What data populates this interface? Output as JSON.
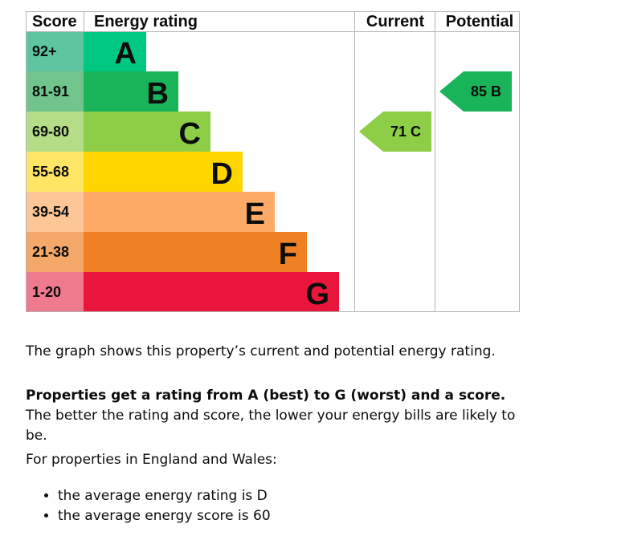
{
  "chart_data": {
    "type": "table",
    "headers": {
      "score": "Score",
      "rating": "Energy rating",
      "current": "Current",
      "potential": "Potential"
    },
    "bands": [
      {
        "letter": "A",
        "range": "92+",
        "color": "#00c781",
        "score_color": "#5ec5a0"
      },
      {
        "letter": "B",
        "range": "81-91",
        "color": "#19b459",
        "score_color": "#71c48c"
      },
      {
        "letter": "C",
        "range": "69-80",
        "color": "#8dce46",
        "score_color": "#b5dc86"
      },
      {
        "letter": "D",
        "range": "55-68",
        "color": "#ffd500",
        "score_color": "#ffe566"
      },
      {
        "letter": "E",
        "range": "39-54",
        "color": "#fcaa65",
        "score_color": "#fdc697"
      },
      {
        "letter": "F",
        "range": "21-38",
        "color": "#ef8023",
        "score_color": "#f4a96a"
      },
      {
        "letter": "G",
        "range": "1-20",
        "color": "#e9153b",
        "score_color": "#f07a8d"
      }
    ],
    "current": {
      "score": 71,
      "band": "C",
      "label": "71 C",
      "color": "#8dce46"
    },
    "potential": {
      "score": 85,
      "band": "B",
      "label": "85 B",
      "color": "#19b459"
    }
  },
  "text": {
    "summary": "The graph shows this property’s current and potential energy rating.",
    "rating_bold": "Properties get a rating from A (best) to G (worst) and a score.",
    "rating_rest": " The better the rating and score, the lower your energy bills are likely to be.",
    "average_intro": "For properties in England and Wales:",
    "bullets": [
      "the average energy rating is D",
      "the average energy score is 60"
    ]
  }
}
